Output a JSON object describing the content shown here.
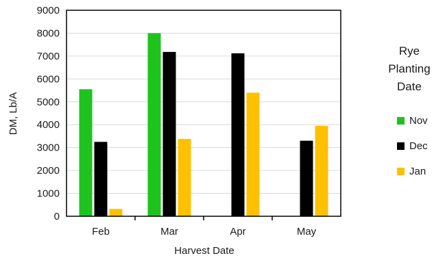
{
  "chart_data": {
    "type": "bar",
    "categories": [
      "Feb",
      "Mar",
      "Apr",
      "May"
    ],
    "series": [
      {
        "name": "Nov",
        "color": "#1ec31e",
        "values": [
          5550,
          8000,
          null,
          null
        ]
      },
      {
        "name": "Dec",
        "color": "#000000",
        "values": [
          3250,
          7180,
          7120,
          3300
        ]
      },
      {
        "name": "Jan",
        "color": "#ffc000",
        "values": [
          320,
          3380,
          5400,
          3950
        ]
      }
    ],
    "xlabel": "Harvest Date",
    "ylabel": "DM, Lb/A",
    "ylim": [
      0,
      9000
    ],
    "yticks": [
      0,
      1000,
      2000,
      3000,
      4000,
      5000,
      6000,
      7000,
      8000,
      9000
    ],
    "grid": true,
    "legend": {
      "title_lines": [
        "Rye",
        "Planting",
        "Date"
      ],
      "placement": "right"
    }
  }
}
